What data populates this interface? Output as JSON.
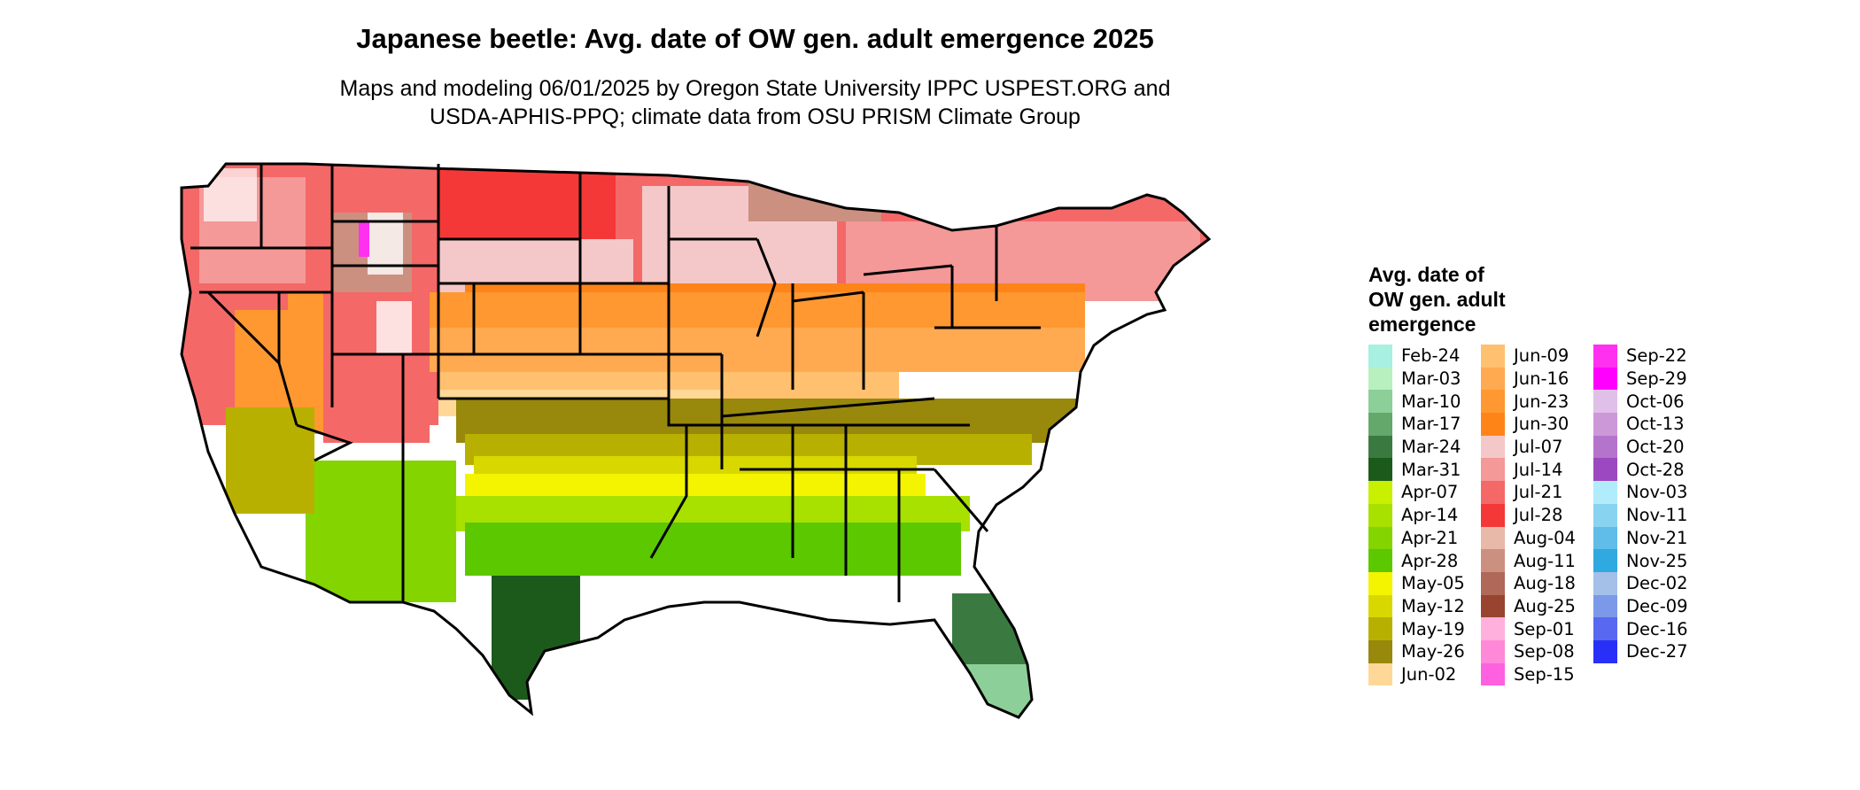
{
  "title": "Japanese beetle: Avg. date of OW gen. adult emergence 2025",
  "subtitle_line1": "Maps and modeling 06/01/2025 by Oregon State University IPPC USPEST.ORG and",
  "subtitle_line2": "USDA-APHIS-PPQ; climate data from OSU PRISM Climate Group",
  "legend": {
    "title_line1": "Avg. date of",
    "title_line2": "OW gen. adult",
    "title_line3": "emergence",
    "items": [
      {
        "label": "Feb-24",
        "color": "#a8f0e0"
      },
      {
        "label": "Mar-03",
        "color": "#b8f0c0"
      },
      {
        "label": "Mar-10",
        "color": "#8ccf98"
      },
      {
        "label": "Mar-17",
        "color": "#64a86c"
      },
      {
        "label": "Mar-24",
        "color": "#3a7a40"
      },
      {
        "label": "Mar-31",
        "color": "#1c5a1c"
      },
      {
        "label": "Apr-07",
        "color": "#c8f000"
      },
      {
        "label": "Apr-14",
        "color": "#a8e000"
      },
      {
        "label": "Apr-21",
        "color": "#84d400"
      },
      {
        "label": "Apr-28",
        "color": "#5cc800"
      },
      {
        "label": "May-05",
        "color": "#f4f400"
      },
      {
        "label": "May-12",
        "color": "#d8d800"
      },
      {
        "label": "May-19",
        "color": "#b8b000"
      },
      {
        "label": "May-26",
        "color": "#98880c"
      },
      {
        "label": "Jun-02",
        "color": "#ffd898"
      },
      {
        "label": "Jun-09",
        "color": "#ffc070"
      },
      {
        "label": "Jun-16",
        "color": "#ffaa50"
      },
      {
        "label": "Jun-23",
        "color": "#ff9830"
      },
      {
        "label": "Jun-30",
        "color": "#ff8418"
      },
      {
        "label": "Jul-07",
        "color": "#f4c8c8"
      },
      {
        "label": "Jul-14",
        "color": "#f49898"
      },
      {
        "label": "Jul-21",
        "color": "#f46868"
      },
      {
        "label": "Jul-28",
        "color": "#f43838"
      },
      {
        "label": "Aug-04",
        "color": "#e8b8a8"
      },
      {
        "label": "Aug-11",
        "color": "#cc9080"
      },
      {
        "label": "Aug-18",
        "color": "#b06858"
      },
      {
        "label": "Aug-25",
        "color": "#984430"
      },
      {
        "label": "Sep-01",
        "color": "#ffb0dc"
      },
      {
        "label": "Sep-08",
        "color": "#ff88d8"
      },
      {
        "label": "Sep-15",
        "color": "#ff60e0"
      },
      {
        "label": "Sep-22",
        "color": "#ff30f0"
      },
      {
        "label": "Sep-29",
        "color": "#ff00ff"
      },
      {
        "label": "Oct-06",
        "color": "#e0c0e8"
      },
      {
        "label": "Oct-13",
        "color": "#cc98d8"
      },
      {
        "label": "Oct-20",
        "color": "#b474cc"
      },
      {
        "label": "Oct-28",
        "color": "#9c48c0"
      },
      {
        "label": "Nov-03",
        "color": "#b0ecfc"
      },
      {
        "label": "Nov-11",
        "color": "#88d4f0"
      },
      {
        "label": "Nov-21",
        "color": "#60bce8"
      },
      {
        "label": "Nov-25",
        "color": "#30a8e0"
      },
      {
        "label": "Dec-02",
        "color": "#a4c0e8"
      },
      {
        "label": "Dec-09",
        "color": "#7c98e8"
      },
      {
        "label": "Dec-16",
        "color": "#5868f0"
      },
      {
        "label": "Dec-27",
        "color": "#2830f8"
      }
    ]
  }
}
